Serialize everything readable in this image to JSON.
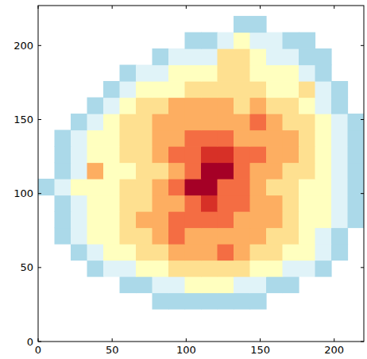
{
  "chart_data": {
    "type": "heatmap",
    "xlim": [
      0,
      220
    ],
    "ylim": [
      0,
      227
    ],
    "xticks": [
      0,
      50,
      100,
      150,
      200
    ],
    "yticks": [
      0,
      50,
      100,
      150,
      200
    ],
    "grid": false,
    "zlim": [
      0,
      10
    ],
    "x_edges": [
      0,
      11,
      22,
      33,
      44,
      55,
      66,
      77,
      88,
      99,
      110,
      121,
      132,
      143,
      154,
      165,
      176,
      187,
      198,
      209,
      220
    ],
    "y_edges": [
      0,
      11,
      22,
      33,
      44,
      55,
      66,
      77,
      88,
      99,
      110,
      121,
      132,
      143,
      154,
      165,
      176,
      187,
      198,
      209,
      220
    ],
    "cells": [
      [
        null,
        null,
        null,
        null,
        null,
        null,
        null,
        null,
        null,
        null,
        null,
        null,
        null,
        null,
        null,
        null,
        null,
        null,
        null,
        null
      ],
      [
        null,
        null,
        null,
        null,
        null,
        null,
        null,
        null,
        null,
        null,
        null,
        null,
        null,
        null,
        null,
        null,
        null,
        null,
        null,
        null
      ],
      [
        null,
        null,
        null,
        null,
        null,
        null,
        null,
        3,
        3,
        3,
        3,
        3,
        3,
        3,
        null,
        null,
        null,
        null,
        null,
        null
      ],
      [
        null,
        null,
        null,
        null,
        null,
        3,
        3,
        4,
        4,
        5,
        5,
        5,
        4,
        4,
        3,
        3,
        null,
        null,
        null,
        null
      ],
      [
        null,
        null,
        null,
        3,
        4,
        4,
        5,
        5,
        6,
        6,
        6,
        6,
        6,
        5,
        5,
        4,
        4,
        3,
        null,
        null
      ],
      [
        null,
        null,
        3,
        4,
        5,
        5,
        6,
        6,
        7,
        7,
        7,
        8,
        7,
        6,
        6,
        5,
        5,
        4,
        3,
        null
      ],
      [
        null,
        3,
        4,
        5,
        5,
        6,
        6,
        7,
        8,
        7,
        7,
        7,
        7,
        7,
        6,
        6,
        5,
        4,
        3,
        null
      ],
      [
        null,
        3,
        4,
        5,
        5,
        6,
        7,
        7,
        8,
        8,
        8,
        8,
        7,
        7,
        7,
        6,
        5,
        5,
        4,
        3
      ],
      [
        null,
        3,
        4,
        5,
        5,
        6,
        6,
        7,
        7,
        8,
        9,
        8,
        8,
        7,
        7,
        6,
        5,
        5,
        4,
        3
      ],
      [
        3,
        4,
        5,
        5,
        5,
        6,
        6,
        7,
        8,
        10,
        10,
        8,
        8,
        7,
        6,
        6,
        5,
        5,
        4,
        3
      ],
      [
        null,
        3,
        4,
        7,
        5,
        5,
        6,
        6,
        7,
        8,
        10,
        10,
        8,
        7,
        7,
        6,
        6,
        5,
        4,
        3
      ],
      [
        null,
        3,
        4,
        5,
        5,
        6,
        6,
        7,
        8,
        8,
        9,
        9,
        8,
        8,
        7,
        7,
        6,
        5,
        4,
        3
      ],
      [
        null,
        3,
        4,
        5,
        5,
        6,
        6,
        7,
        7,
        8,
        8,
        8,
        7,
        7,
        7,
        7,
        6,
        5,
        4,
        3
      ],
      [
        null,
        null,
        3,
        4,
        5,
        6,
        6,
        7,
        7,
        7,
        7,
        7,
        7,
        8,
        7,
        6,
        6,
        5,
        4,
        3
      ],
      [
        null,
        null,
        null,
        3,
        4,
        5,
        6,
        6,
        7,
        7,
        7,
        7,
        6,
        7,
        6,
        6,
        5,
        4,
        3,
        null
      ],
      [
        null,
        null,
        null,
        null,
        3,
        4,
        5,
        5,
        5,
        6,
        6,
        6,
        6,
        6,
        5,
        5,
        6,
        4,
        3,
        null
      ],
      [
        null,
        null,
        null,
        null,
        null,
        3,
        4,
        4,
        5,
        5,
        5,
        6,
        6,
        5,
        5,
        5,
        4,
        3,
        null,
        null
      ],
      [
        null,
        null,
        null,
        null,
        null,
        null,
        null,
        3,
        4,
        4,
        4,
        6,
        6,
        5,
        4,
        4,
        3,
        3,
        null,
        null
      ],
      [
        null,
        null,
        null,
        null,
        null,
        null,
        null,
        null,
        null,
        3,
        3,
        4,
        5,
        4,
        4,
        3,
        3,
        null,
        null,
        null
      ],
      [
        null,
        null,
        null,
        null,
        null,
        null,
        null,
        null,
        null,
        null,
        null,
        null,
        3,
        3,
        null,
        null,
        null,
        null,
        null,
        null
      ]
    ]
  }
}
